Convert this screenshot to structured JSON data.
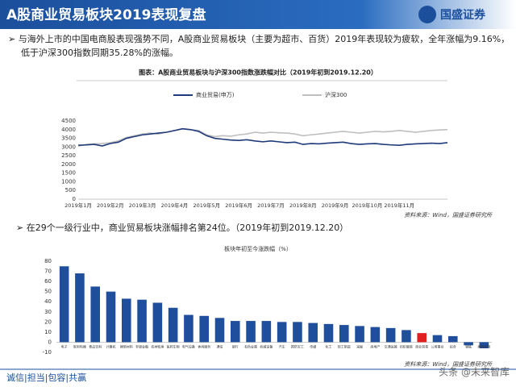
{
  "header": {
    "title": "A股商业贸易板块2019表现复盘",
    "logo": "国盛证券"
  },
  "bullets": [
    "与海外上市的中国电商股表现强势不同，A股商业贸易板块（主要为超市、百货）2019年表现较为疲软，全年涨幅为9.16%，低于沪深300指数同期35.28%的涨幅。",
    "在29个一级行业中，商业贸易板块涨幅排名第24位。（2019年初到2019.12.20）"
  ],
  "sources": [
    "资料来源：Wind，国盛证券研究所",
    "资料来源：Wind，国盛证券研究所"
  ],
  "footer": "诚信|担当|包容|共赢",
  "watermark": "头条 @未来智库",
  "chart_data": [
    {
      "type": "line",
      "title": "图表：A股商业贸易板块与沪深300指数涨跌幅对比（2019年初到2019.12.20）",
      "categories": [
        "2019年1月",
        null,
        null,
        null,
        "2019年2月",
        null,
        null,
        null,
        "2019年3月",
        null,
        null,
        null,
        "2019年4月",
        null,
        null,
        null,
        "2019年5月",
        null,
        null,
        null,
        "2019年6月",
        null,
        null,
        null,
        "2019年7月",
        null,
        null,
        null,
        "2019年8月",
        null,
        null,
        null,
        "2019年9月",
        null,
        null,
        null,
        "2019年10月",
        null,
        null,
        null,
        "2019年11月",
        null,
        null,
        null,
        null,
        null,
        null
      ],
      "series": [
        {
          "name": "商业贸易(申万)",
          "color": "#1f3a7a",
          "values": [
            3100,
            3120,
            3150,
            3060,
            3200,
            3280,
            3500,
            3600,
            3700,
            3750,
            3800,
            3850,
            3950,
            4050,
            4000,
            3900,
            3650,
            3500,
            3450,
            3400,
            3380,
            3420,
            3350,
            3300,
            3350,
            3300,
            3250,
            3280,
            3150,
            3200,
            3180,
            3220,
            3250,
            3280,
            3200,
            3150,
            3180,
            3200,
            3150,
            3120,
            3100,
            3150,
            3180,
            3200,
            3220,
            3200,
            3250
          ]
        },
        {
          "name": "沪深300",
          "color": "#bfbfbf",
          "values": [
            3050,
            3150,
            3180,
            3200,
            3250,
            3350,
            3550,
            3650,
            3750,
            3800,
            3750,
            3850,
            3950,
            4050,
            4000,
            3950,
            3700,
            3600,
            3650,
            3620,
            3700,
            3750,
            3850,
            3800,
            3850,
            3820,
            3800,
            3750,
            3650,
            3700,
            3750,
            3800,
            3850,
            3900,
            3850,
            3800,
            3850,
            3900,
            3870,
            3900,
            3950,
            3900,
            3850,
            3900,
            3950,
            3980,
            4000
          ]
        }
      ],
      "ylim": [
        0,
        4500
      ],
      "yticks": [
        0,
        500,
        1000,
        1500,
        2000,
        2500,
        3000,
        3500,
        4000,
        4500
      ],
      "grid": false,
      "legend": "top"
    },
    {
      "type": "bar",
      "title": "板块年初至今涨跌幅（%）",
      "categories": [
        "电子",
        "家用电器",
        "食品饮料",
        "计算机",
        "建筑材料",
        "非银金融",
        "农林牧渔",
        "医药生物",
        "电气设备",
        "休闲服务",
        "通信",
        "银行",
        "有色金属",
        "机械设备",
        "汽车",
        "国防军工",
        "传媒",
        "化工",
        "轻工制造",
        "采掘",
        "房地产",
        "交通运输",
        "纺织服装",
        "商业贸易",
        "公用事业",
        "综合",
        "钢铁",
        "建筑装饰"
      ],
      "values": [
        75,
        68,
        55,
        50,
        43,
        42,
        39,
        34,
        27,
        26,
        24,
        21,
        21,
        21,
        20,
        20,
        19,
        18,
        17,
        16,
        15,
        14,
        12,
        9,
        7,
        6,
        -3,
        -6
      ],
      "color": "#1f4e9c",
      "highlight_color": "#e02020",
      "highlight": "商业贸易",
      "ylim": [
        -10,
        80
      ],
      "yticks": [
        -10,
        0,
        10,
        20,
        30,
        40,
        50,
        60,
        70,
        80
      ],
      "grid": false
    }
  ]
}
